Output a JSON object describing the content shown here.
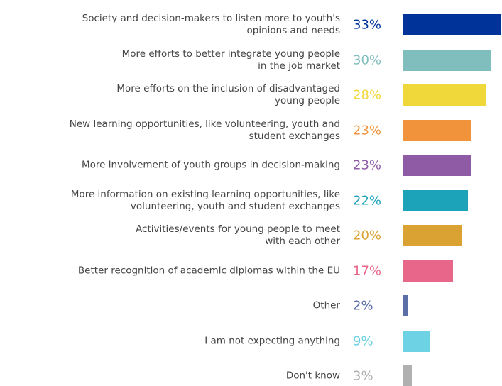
{
  "chart_data": {
    "type": "bar",
    "categories": [
      "Society and decision-makers to listen more to youth's\nopinions and needs",
      "More efforts to better integrate young people\nin the job market",
      "More efforts on the inclusion of disadvantaged\nyoung people",
      "New learning opportunities, like volunteering, youth and\nstudent exchanges",
      "More involvement of youth groups in decision-making",
      "More information on existing learning opportunities, like\nvolunteering, youth and student exchanges",
      "Activities/events for young people to meet\nwith each other",
      "Better recognition of academic diplomas within the EU",
      "Other",
      "I am not expecting anything",
      "Don't know"
    ],
    "values": [
      33,
      30,
      28,
      23,
      23,
      22,
      20,
      17,
      2,
      9,
      3
    ],
    "value_labels": [
      "33%",
      "30%",
      "28%",
      "23%",
      "23%",
      "22%",
      "20%",
      "17%",
      "2%",
      "9%",
      "3%"
    ],
    "colors": [
      "#003399",
      "#80bdbd",
      "#f0d83a",
      "#f0933a",
      "#8e5ba4",
      "#1da3b9",
      "#d9a232",
      "#e7668a",
      "#5c6ea8",
      "#6dd2e3",
      "#b0b0b0"
    ]
  }
}
